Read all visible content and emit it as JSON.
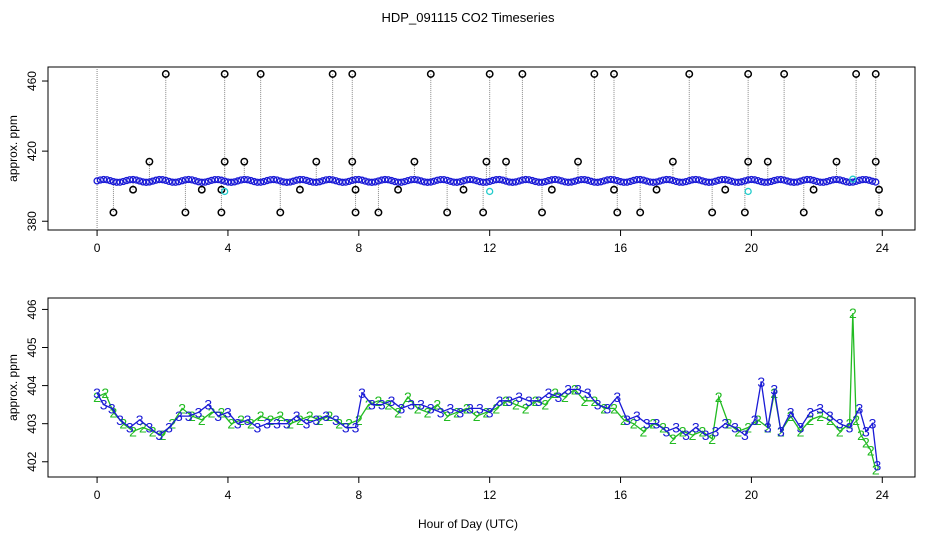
{
  "chart_data": {
    "title": "HDP_091115  CO2 Timeseries",
    "xlabel": "Hour of Day (UTC)",
    "colors": {
      "series2": "#22bb22",
      "series3": "#1a1ad6",
      "cyan": "#22cccc",
      "spike": "#000000",
      "droplines": "#888888"
    },
    "panels": [
      {
        "type": "scatter",
        "ylabel": "approx. ppm",
        "xlim": [
          -1.5,
          25
        ],
        "ylim": [
          375,
          468
        ],
        "xticks": [
          0,
          4,
          8,
          12,
          16,
          20,
          24
        ],
        "xtick_labels": [
          "0",
          "4",
          "8",
          "12",
          "16",
          "20",
          "24"
        ],
        "yticks": [
          380,
          420,
          460
        ],
        "ytick_labels": [
          "380",
          "420",
          "460"
        ],
        "baseline": 403,
        "outliers_high": [
          2.1,
          3.9,
          5.0,
          7.2,
          7.8,
          10.2,
          12.0,
          13.0,
          15.2,
          15.8,
          18.1,
          19.9,
          21.0,
          23.2,
          23.8
        ],
        "outliers_low": [
          0.5,
          2.7,
          3.8,
          5.6,
          7.9,
          8.6,
          10.7,
          11.8,
          13.6,
          15.9,
          16.6,
          18.8,
          19.8,
          21.6,
          23.9
        ],
        "outliers_mid_high": [
          1.6,
          3.9,
          4.5,
          6.7,
          7.8,
          9.7,
          11.9,
          12.5,
          14.7,
          17.6,
          19.9,
          20.5,
          22.6,
          23.8
        ],
        "outliers_mid_low": [
          1.1,
          3.2,
          3.8,
          6.2,
          7.9,
          9.2,
          11.2,
          13.9,
          15.8,
          17.1,
          19.2,
          21.9,
          23.9
        ],
        "cyan_points": [
          [
            3.9,
            397
          ],
          [
            12.0,
            397
          ],
          [
            19.9,
            397
          ],
          [
            23.1,
            404
          ]
        ]
      },
      {
        "type": "line",
        "ylabel": "approx. ppm",
        "xlim": [
          -1.5,
          25
        ],
        "ylim": [
          401.6,
          406.3
        ],
        "xticks": [
          0,
          4,
          8,
          12,
          16,
          20,
          24
        ],
        "xtick_labels": [
          "0",
          "4",
          "8",
          "12",
          "16",
          "20",
          "24"
        ],
        "yticks": [
          402,
          403,
          404,
          405,
          406
        ],
        "ytick_labels": [
          "402",
          "403",
          "404",
          "405",
          "406"
        ],
        "series": [
          {
            "name": "2",
            "x": [
              0,
              0.25,
              0.5,
              0.8,
              1.1,
              1.4,
              1.7,
              2.0,
              2.3,
              2.6,
              2.9,
              3.2,
              3.5,
              3.8,
              4.1,
              4.4,
              4.7,
              5.0,
              5.3,
              5.6,
              5.9,
              6.2,
              6.5,
              6.8,
              7.1,
              7.4,
              7.7,
              8.0,
              8.3,
              8.6,
              8.9,
              9.2,
              9.5,
              9.8,
              10.1,
              10.4,
              10.7,
              11.0,
              11.3,
              11.6,
              11.9,
              12.2,
              12.5,
              12.8,
              13.1,
              13.4,
              13.7,
              14.0,
              14.3,
              14.6,
              14.9,
              15.2,
              15.5,
              15.8,
              16.1,
              16.4,
              16.7,
              17.0,
              17.3,
              17.6,
              17.9,
              18.2,
              18.5,
              18.8,
              19.0,
              19.3,
              19.6,
              19.9,
              20.2,
              20.5,
              20.7,
              20.9,
              21.2,
              21.5,
              21.8,
              22.1,
              22.4,
              22.7,
              23.0,
              23.1,
              23.2,
              23.35,
              23.5,
              23.65,
              23.8
            ],
            "y": [
              403.7,
              403.8,
              403.3,
              403.0,
              402.8,
              402.9,
              402.8,
              402.7,
              403.0,
              403.4,
              403.2,
              403.1,
              403.3,
              403.3,
              403.0,
              403.1,
              403.0,
              403.2,
              403.1,
              403.2,
              403.0,
              403.1,
              403.2,
              403.1,
              403.2,
              403.0,
              403.0,
              403.1,
              403.5,
              403.6,
              403.5,
              403.3,
              403.7,
              403.4,
              403.3,
              403.5,
              403.2,
              403.3,
              403.4,
              403.2,
              403.3,
              403.4,
              403.6,
              403.5,
              403.4,
              403.6,
              403.5,
              403.8,
              403.7,
              403.9,
              403.6,
              403.6,
              403.4,
              403.4,
              403.1,
              403.0,
              402.8,
              403.0,
              402.9,
              402.6,
              402.8,
              402.7,
              402.8,
              402.6,
              403.7,
              403.0,
              402.8,
              402.9,
              403.1,
              402.9,
              403.8,
              402.8,
              403.2,
              402.8,
              403.1,
              403.2,
              403.1,
              402.8,
              403.0,
              405.9,
              403.1,
              402.7,
              402.5,
              402.3,
              401.8
            ]
          },
          {
            "name": "3",
            "x": [
              0,
              0.2,
              0.45,
              0.7,
              1.0,
              1.3,
              1.6,
              1.9,
              2.2,
              2.5,
              2.8,
              3.1,
              3.4,
              3.7,
              4.0,
              4.3,
              4.6,
              4.9,
              5.2,
              5.5,
              5.8,
              6.1,
              6.4,
              6.7,
              7.0,
              7.3,
              7.6,
              7.9,
              8.1,
              8.4,
              8.7,
              9.0,
              9.3,
              9.6,
              9.9,
              10.2,
              10.5,
              10.8,
              11.1,
              11.4,
              11.7,
              12.0,
              12.3,
              12.6,
              12.9,
              13.2,
              13.5,
              13.8,
              14.1,
              14.4,
              14.7,
              15.0,
              15.3,
              15.6,
              15.9,
              16.2,
              16.5,
              16.8,
              17.1,
              17.4,
              17.7,
              18.0,
              18.3,
              18.6,
              18.9,
              19.2,
              19.5,
              19.8,
              20.1,
              20.3,
              20.5,
              20.7,
              20.9,
              21.2,
              21.5,
              21.8,
              22.1,
              22.4,
              22.7,
              23.0,
              23.3,
              23.5,
              23.7,
              23.85
            ],
            "y": [
              403.8,
              403.5,
              403.4,
              403.1,
              402.9,
              403.1,
              402.9,
              402.7,
              402.9,
              403.2,
              403.2,
              403.3,
              403.5,
              403.2,
              403.3,
              403.0,
              403.1,
              402.9,
              403.0,
              403.0,
              403.0,
              403.2,
              403.0,
              403.1,
              403.2,
              403.1,
              402.9,
              402.9,
              403.8,
              403.5,
              403.5,
              403.6,
              403.4,
              403.5,
              403.5,
              403.4,
              403.3,
              403.4,
              403.3,
              403.4,
              403.4,
              403.3,
              403.6,
              403.6,
              403.7,
              403.6,
              403.6,
              403.8,
              403.7,
              403.9,
              403.9,
              403.8,
              403.5,
              403.4,
              403.7,
              403.1,
              403.2,
              403.0,
              403.0,
              402.8,
              402.9,
              402.7,
              402.9,
              402.7,
              402.8,
              403.0,
              402.9,
              402.7,
              403.1,
              404.1,
              402.9,
              403.9,
              402.8,
              403.3,
              402.9,
              403.3,
              403.4,
              403.2,
              403.0,
              402.9,
              403.4,
              402.8,
              403.0,
              401.9
            ]
          }
        ]
      }
    ]
  }
}
